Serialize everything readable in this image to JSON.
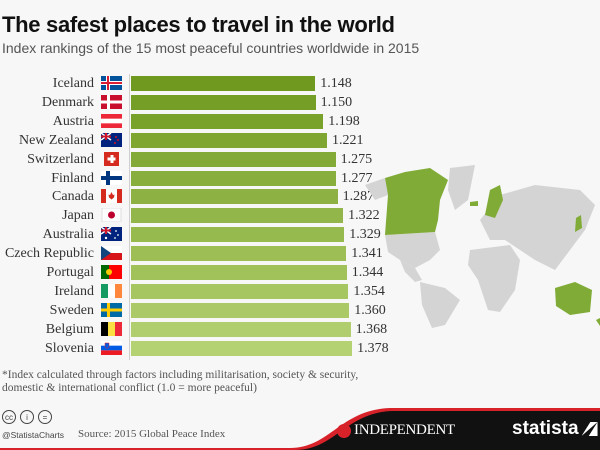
{
  "header": {
    "title": "The safest places to travel in the world",
    "subtitle": "Index rankings of the 15 most peaceful countries worldwide in 2015"
  },
  "chart_data": {
    "type": "bar",
    "orientation": "horizontal",
    "title": "The safest places to travel in the world",
    "subtitle": "Index rankings of the 15 most peaceful countries worldwide in 2015",
    "xlabel": "",
    "ylabel": "",
    "categories": [
      "Iceland",
      "Denmark",
      "Austria",
      "New Zealand",
      "Switzerland",
      "Finland",
      "Canada",
      "Japan",
      "Australia",
      "Czech Republic",
      "Portugal",
      "Ireland",
      "Sweden",
      "Belgium",
      "Slovenia"
    ],
    "values": [
      1.148,
      1.15,
      1.198,
      1.221,
      1.275,
      1.277,
      1.287,
      1.322,
      1.329,
      1.341,
      1.344,
      1.354,
      1.36,
      1.368,
      1.378
    ],
    "value_labels": [
      "1.148",
      "1.150",
      "1.198",
      "1.221",
      "1.275",
      "1.277",
      "1.287",
      "1.322",
      "1.329",
      "1.341",
      "1.344",
      "1.354",
      "1.360",
      "1.368",
      "1.378"
    ],
    "grid": false,
    "legend": null,
    "bar_colors": [
      "#6f9a1f",
      "#749e25",
      "#79a22b",
      "#7ea631",
      "#83aa37",
      "#88ae3d",
      "#8db243",
      "#92b649",
      "#97ba4f",
      "#9cbe55",
      "#a1c25b",
      "#a6c661",
      "#abca67",
      "#b0ce6d",
      "#b5d273"
    ]
  },
  "note": {
    "line1": "*Index calculated through factors including militarisation, society & security,",
    "line2": "domestic & international conflict (1.0 = more peaceful)"
  },
  "footer": {
    "handle": "@StatistaCharts",
    "source": "Source: 2015 Global Peace Index",
    "license_icons": [
      "cc",
      "by",
      "nd"
    ],
    "license_glyphs": [
      "cc",
      "i",
      "="
    ],
    "partner": "INDEPENDENT",
    "brand": "statista"
  },
  "colors": {
    "bar_dark": "#6f9a1f",
    "bar_light": "#b5d273",
    "map_gray": "#d4d4d4",
    "map_highlight": "#7fab36",
    "footer_black": "#111111",
    "footer_red": "#d8222a"
  }
}
